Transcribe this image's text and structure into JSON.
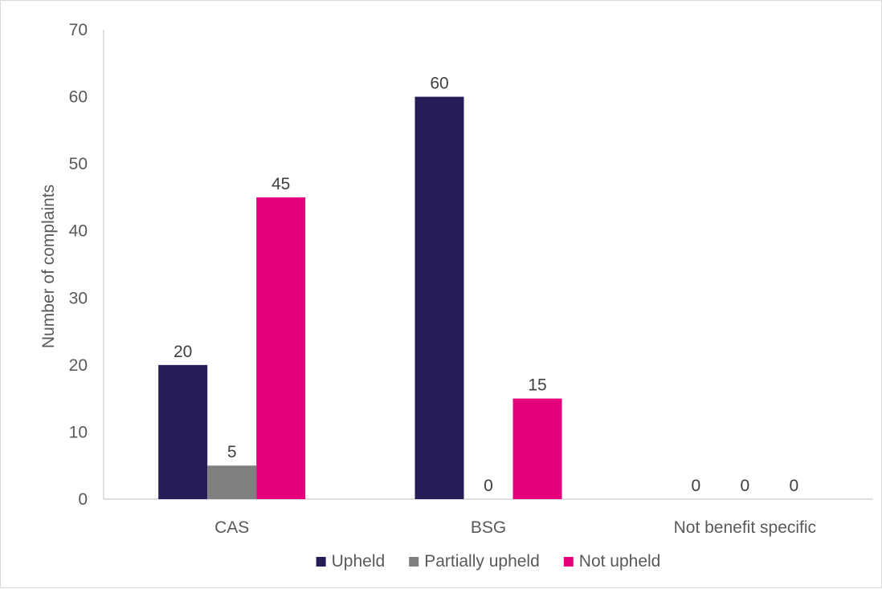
{
  "chart_data": {
    "type": "bar",
    "title": "",
    "xlabel": "",
    "ylabel": "Number of complaints",
    "categories": [
      "CAS",
      "BSG",
      "Not benefit specific"
    ],
    "series": [
      {
        "name": "Upheld",
        "values": [
          20,
          60,
          0
        ],
        "color": "#261d58"
      },
      {
        "name": "Partially upheld",
        "values": [
          5,
          0,
          0
        ],
        "color": "#808080"
      },
      {
        "name": "Not upheld",
        "values": [
          45,
          15,
          0
        ],
        "color": "#e6007e"
      }
    ],
    "ylim": [
      0,
      70
    ],
    "yticks": [
      0,
      10,
      20,
      30,
      40,
      50,
      60,
      70
    ],
    "grid": false,
    "legend_position": "bottom",
    "data_labels": true
  }
}
